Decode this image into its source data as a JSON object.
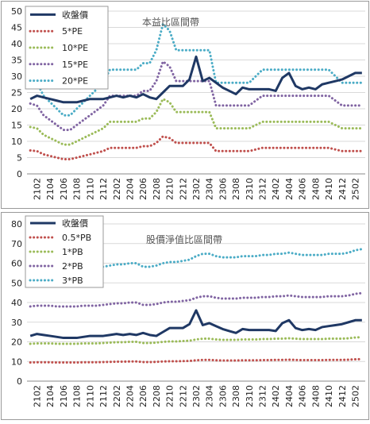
{
  "chart_data": [
    {
      "type": "line",
      "title": "本益比區間帶",
      "legend": "top-left",
      "grid": true,
      "categories": [
        null,
        "2102",
        null,
        "2104",
        null,
        "2106",
        null,
        "2108",
        null,
        "2110",
        null,
        "2112",
        null,
        "2202",
        null,
        "2204",
        null,
        "2206",
        null,
        "2208",
        null,
        "2210",
        null,
        "2212",
        null,
        "2302",
        null,
        "2304",
        null,
        "2306",
        null,
        "2308",
        null,
        "2310",
        null,
        "2312",
        null,
        "2402",
        null,
        "2404",
        null,
        "2406",
        null,
        "2408",
        null,
        "2410",
        null,
        "2412",
        null,
        "2502",
        null
      ],
      "ylim": [
        0,
        50
      ],
      "yticks": [
        0,
        5,
        10,
        15,
        20,
        25,
        30,
        35,
        40,
        45,
        50
      ],
      "series": [
        {
          "name": "收盤價",
          "color": "#1f3864",
          "style": "solid",
          "values": [
            23,
            24,
            23.5,
            23,
            22.5,
            22,
            22,
            22,
            22.5,
            23,
            23,
            23,
            23.5,
            24,
            23.5,
            24,
            23.5,
            24.5,
            23.5,
            23,
            25,
            27,
            27,
            27,
            29,
            36,
            28.5,
            29.5,
            28,
            26.5,
            25.5,
            24.5,
            26.5,
            26,
            26,
            26,
            26,
            25.5,
            29.5,
            31,
            27,
            26,
            26.5,
            26,
            27.5,
            28,
            28.5,
            29,
            30,
            31,
            31
          ]
        },
        {
          "name": "5*PE",
          "color": "#c0504d",
          "style": "dotted",
          "values": [
            7.2,
            7,
            6,
            5.5,
            5,
            4.5,
            4.5,
            5,
            5.5,
            6,
            6.5,
            7,
            8,
            8,
            8,
            8,
            8,
            8.5,
            8.5,
            9.5,
            11.5,
            11,
            9.5,
            9.5,
            9.5,
            9.5,
            9.5,
            9.5,
            7,
            7,
            7,
            7,
            7,
            7,
            7.5,
            8,
            8,
            8,
            8,
            8,
            8,
            8,
            8,
            8,
            8,
            8,
            7.5,
            7,
            7,
            7,
            7
          ]
        },
        {
          "name": "10*PE",
          "color": "#9bbb59",
          "style": "dotted",
          "values": [
            14.4,
            14,
            12,
            11,
            10,
            9,
            9,
            10,
            11,
            12,
            13,
            14,
            16,
            16,
            16,
            16,
            16,
            17,
            17,
            19,
            23,
            22,
            19,
            19,
            19,
            19,
            19,
            19,
            14,
            14,
            14,
            14,
            14,
            14,
            15,
            16,
            16,
            16,
            16,
            16,
            16,
            16,
            16,
            16,
            16,
            16,
            15,
            14,
            14,
            14,
            14
          ]
        },
        {
          "name": "15*PE",
          "color": "#8064a2",
          "style": "dotted",
          "values": [
            21.6,
            21,
            18,
            16.5,
            15,
            13.5,
            13.5,
            15,
            16.5,
            18,
            19.5,
            21,
            24,
            24,
            24,
            24,
            24,
            25.5,
            25.5,
            28.5,
            34.5,
            33,
            28.5,
            28.5,
            28.5,
            28.5,
            28.5,
            28.5,
            21,
            21,
            21,
            21,
            21,
            21,
            22.5,
            24,
            24,
            24,
            24,
            24,
            24,
            24,
            24,
            24,
            24,
            24,
            22.5,
            21,
            21,
            21,
            21
          ]
        },
        {
          "name": "20*PE",
          "color": "#4bacc6",
          "style": "dotted",
          "values": [
            28.8,
            28,
            24,
            22,
            20,
            18,
            18,
            20,
            22,
            24,
            26,
            28,
            32,
            32,
            32,
            32,
            32,
            34,
            34,
            38,
            46,
            44,
            38,
            38,
            38,
            38,
            38,
            38,
            28,
            28,
            28,
            28,
            28,
            28,
            30,
            32,
            32,
            32,
            32,
            32,
            32,
            32,
            32,
            32,
            32,
            32,
            30,
            28,
            28,
            28,
            28
          ]
        }
      ]
    },
    {
      "type": "line",
      "title": "股價淨值比區間帶",
      "legend": "top-left",
      "grid": true,
      "categories": [
        null,
        "2102",
        null,
        "2104",
        null,
        "2106",
        null,
        "2108",
        null,
        "2110",
        null,
        "2112",
        null,
        "2202",
        null,
        "2204",
        null,
        "2206",
        null,
        "2208",
        null,
        "2210",
        null,
        "2212",
        null,
        "2302",
        null,
        "2304",
        null,
        "2306",
        null,
        "2308",
        null,
        "2310",
        null,
        "2312",
        null,
        "2402",
        null,
        "2404",
        null,
        "2406",
        null,
        "2408",
        null,
        "2410",
        null,
        "2412",
        null,
        "2502",
        null
      ],
      "ylim": [
        0,
        80
      ],
      "yticks": [
        0,
        10,
        20,
        30,
        40,
        50,
        60,
        70,
        80
      ],
      "series": [
        {
          "name": "收盤價",
          "color": "#1f3864",
          "style": "solid",
          "values": [
            23,
            24,
            23.5,
            23,
            22.5,
            22,
            22,
            22,
            22.5,
            23,
            23,
            23,
            23.5,
            24,
            23.5,
            24,
            23.5,
            24.5,
            23.5,
            23,
            25,
            27,
            27,
            27,
            29,
            36,
            28.5,
            29.5,
            28,
            26.5,
            25.5,
            24.5,
            26.5,
            26,
            26,
            26,
            26,
            25.5,
            29.5,
            31,
            27,
            26,
            26.5,
            26,
            27.5,
            28,
            28.5,
            29,
            30,
            31,
            31
          ]
        },
        {
          "name": "0.5*PB",
          "color": "#c0504d",
          "style": "dotted",
          "values": [
            9.5,
            9.6,
            9.6,
            9.6,
            9.5,
            9.5,
            9.5,
            9.5,
            9.6,
            9.6,
            9.6,
            9.7,
            9.8,
            9.9,
            9.9,
            10,
            10,
            9.7,
            9.7,
            9.8,
            10,
            10.1,
            10.1,
            10.2,
            10.3,
            10.6,
            10.8,
            10.8,
            10.6,
            10.5,
            10.5,
            10.5,
            10.6,
            10.6,
            10.6,
            10.7,
            10.7,
            10.8,
            10.8,
            10.9,
            10.8,
            10.7,
            10.7,
            10.7,
            10.7,
            10.8,
            10.8,
            10.8,
            10.9,
            11.1,
            11.2
          ]
        },
        {
          "name": "1*PB",
          "color": "#9bbb59",
          "style": "dotted",
          "values": [
            19,
            19.2,
            19.2,
            19.2,
            19,
            19,
            19,
            19,
            19.2,
            19.2,
            19.2,
            19.4,
            19.6,
            19.8,
            19.8,
            20,
            20,
            19.4,
            19.4,
            19.6,
            20,
            20.2,
            20.2,
            20.4,
            20.6,
            21.2,
            21.6,
            21.6,
            21.2,
            21,
            21,
            21,
            21.2,
            21.2,
            21.2,
            21.4,
            21.4,
            21.6,
            21.6,
            21.8,
            21.6,
            21.4,
            21.4,
            21.4,
            21.4,
            21.6,
            21.6,
            21.6,
            21.8,
            22.2,
            22.4
          ]
        },
        {
          "name": "2*PB",
          "color": "#8064a2",
          "style": "dotted",
          "values": [
            38,
            38.4,
            38.4,
            38.4,
            38,
            38,
            38,
            38,
            38.4,
            38.4,
            38.4,
            38.8,
            39.2,
            39.6,
            39.6,
            40,
            40,
            38.8,
            38.8,
            39.2,
            40,
            40.4,
            40.4,
            40.8,
            41.2,
            42.4,
            43.2,
            43.2,
            42.4,
            42,
            42,
            42,
            42.4,
            42.4,
            42.4,
            42.8,
            42.8,
            43.2,
            43.2,
            43.6,
            43.2,
            42.8,
            42.8,
            42.8,
            42.8,
            43.2,
            43.2,
            43.2,
            43.6,
            44.4,
            44.8
          ]
        },
        {
          "name": "3*PB",
          "color": "#4bacc6",
          "style": "dotted",
          "values": [
            57,
            57.6,
            57.6,
            57.6,
            57,
            57,
            57,
            57,
            57.6,
            57.6,
            57.6,
            58.2,
            58.8,
            59.4,
            59.4,
            60,
            60,
            58.2,
            58.2,
            58.8,
            60,
            60.6,
            60.6,
            61.2,
            61.8,
            63.6,
            64.8,
            64.8,
            63.6,
            63,
            63,
            63,
            63.6,
            63.6,
            63.6,
            64.2,
            64.2,
            64.8,
            64.8,
            65.4,
            64.8,
            64.2,
            64.2,
            64.2,
            64.2,
            64.8,
            64.8,
            64.8,
            65.4,
            66.6,
            67.2
          ]
        }
      ]
    }
  ]
}
